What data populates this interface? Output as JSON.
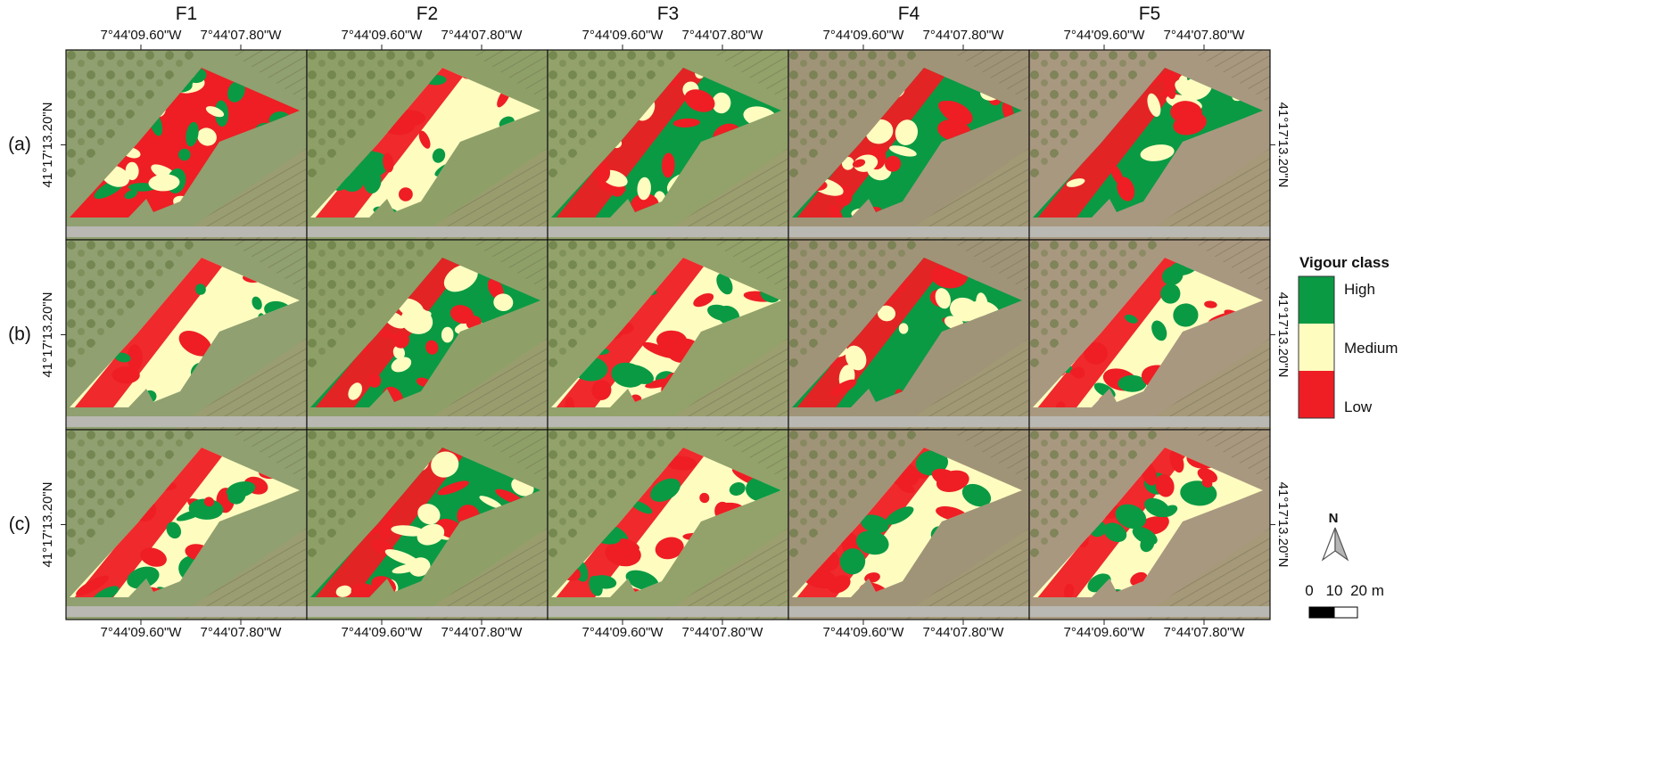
{
  "columns": [
    "F1",
    "F2",
    "F3",
    "F4",
    "F5"
  ],
  "rows": [
    "(a)",
    "(b)",
    "(c)"
  ],
  "longitude_labels": [
    "7°44'09.60\"W",
    "7°44'07.80\"W"
  ],
  "latitude_label": "41°17'13.20\"N",
  "legend": {
    "title": "Vigour class",
    "classes": [
      {
        "name": "High",
        "color": "#0a9a44"
      },
      {
        "name": "Medium",
        "color": "#fffcc0"
      },
      {
        "name": "Low",
        "color": "#ee1e24"
      }
    ]
  },
  "scale_bar": {
    "labels": [
      "0",
      "10",
      "20 m"
    ]
  },
  "north_arrow": {
    "label": "N"
  },
  "colors": {
    "high": "#0a9a44",
    "medium": "#fffcc0",
    "low": "#ee1e24",
    "grass": "#8e9f66",
    "vineyard": "#a39a72",
    "road": "#b9b8b3"
  },
  "maps": [
    {
      "row": "(a)",
      "column": "F1",
      "background": "#90a070",
      "dominant": "low"
    },
    {
      "row": "(a)",
      "column": "F2",
      "background": "#8ea068",
      "dominant": "medium"
    },
    {
      "row": "(a)",
      "column": "F3",
      "background": "#92a26a",
      "dominant": "high"
    },
    {
      "row": "(a)",
      "column": "F4",
      "background": "#a09478",
      "dominant": "high"
    },
    {
      "row": "(a)",
      "column": "F5",
      "background": "#a99880",
      "dominant": "high"
    },
    {
      "row": "(b)",
      "column": "F1",
      "background": "#90a070",
      "dominant": "medium"
    },
    {
      "row": "(b)",
      "column": "F2",
      "background": "#8ea068",
      "dominant": "high"
    },
    {
      "row": "(b)",
      "column": "F3",
      "background": "#92a26a",
      "dominant": "medium"
    },
    {
      "row": "(b)",
      "column": "F4",
      "background": "#a09478",
      "dominant": "high"
    },
    {
      "row": "(b)",
      "column": "F5",
      "background": "#a99880",
      "dominant": "medium"
    },
    {
      "row": "(c)",
      "column": "F1",
      "background": "#90a070",
      "dominant": "medium"
    },
    {
      "row": "(c)",
      "column": "F2",
      "background": "#8ea068",
      "dominant": "high"
    },
    {
      "row": "(c)",
      "column": "F3",
      "background": "#92a26a",
      "dominant": "medium"
    },
    {
      "row": "(c)",
      "column": "F4",
      "background": "#a09478",
      "dominant": "medium"
    },
    {
      "row": "(c)",
      "column": "F5",
      "background": "#a99880",
      "dominant": "medium"
    }
  ]
}
